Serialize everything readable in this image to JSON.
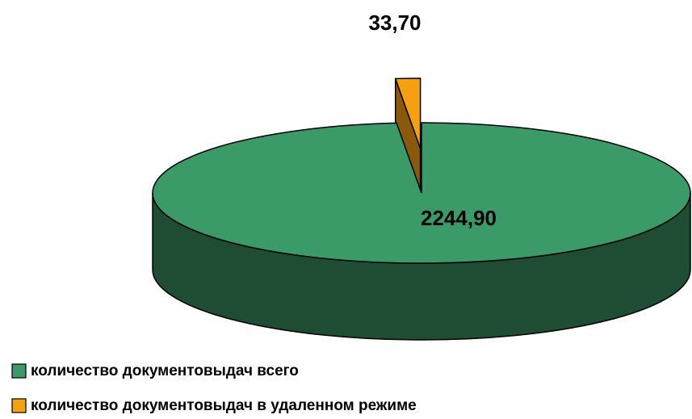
{
  "chart_data": {
    "type": "pie",
    "categories": [
      "количество документовыдач всего",
      "количество документовыдач в удаленном режиме"
    ],
    "values": [
      2244.9,
      33.7
    ],
    "value_labels": [
      "2244,90",
      "33,70"
    ],
    "colors": [
      "#3a9a68",
      "#f5a10f"
    ],
    "side_colors": [
      "#1f4d34",
      "#8a5a0a"
    ],
    "exploded": [
      false,
      true
    ],
    "legend": "bottom-left"
  }
}
